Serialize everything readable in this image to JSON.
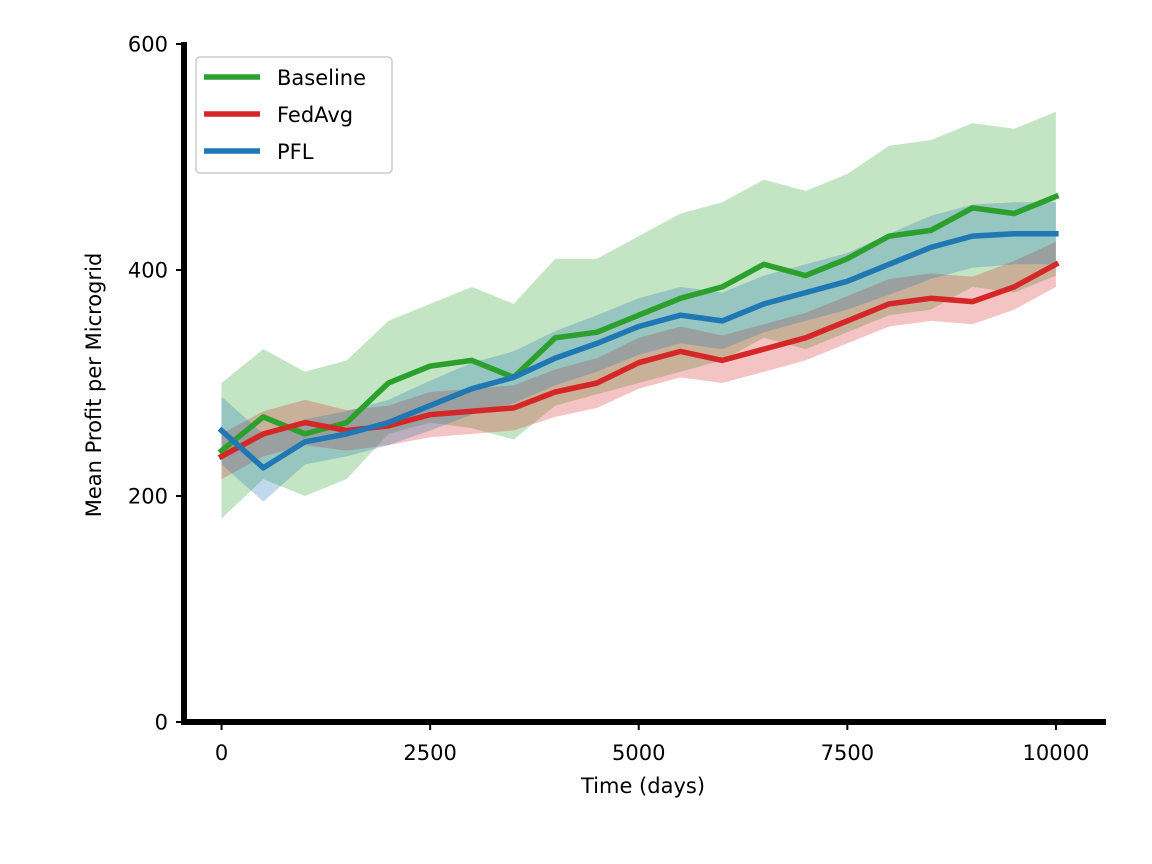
{
  "chart_data": {
    "type": "line",
    "title": "",
    "xlabel": "Time (days)",
    "ylabel": "Mean Profit per Microgrid",
    "xlim": [
      -450,
      10600
    ],
    "ylim": [
      0,
      600
    ],
    "xticks": [
      0,
      2500,
      5000,
      7500,
      10000
    ],
    "yticks": [
      0,
      200,
      400,
      600
    ],
    "xtick_labels": [
      "0",
      "2500",
      "5000",
      "7500",
      "10000"
    ],
    "ytick_labels": [
      "0",
      "200",
      "400",
      "600"
    ],
    "grid": false,
    "legend_position": "top-left",
    "x": [
      0,
      500,
      1000,
      1500,
      2000,
      2500,
      3000,
      3500,
      4000,
      4500,
      5000,
      5500,
      6000,
      6500,
      7000,
      7500,
      8000,
      8500,
      9000,
      9500,
      10000
    ],
    "series": [
      {
        "name": "Baseline",
        "color": "#2ca02c",
        "band_color": "#2ca02c",
        "values": [
          240,
          270,
          255,
          265,
          300,
          315,
          320,
          305,
          340,
          345,
          360,
          375,
          385,
          405,
          395,
          410,
          430,
          435,
          455,
          450,
          465
        ],
        "lower": [
          180,
          215,
          200,
          215,
          255,
          265,
          260,
          250,
          280,
          290,
          300,
          310,
          320,
          340,
          330,
          345,
          360,
          365,
          385,
          380,
          395
        ],
        "upper": [
          300,
          330,
          310,
          320,
          355,
          370,
          385,
          370,
          410,
          410,
          430,
          450,
          460,
          480,
          470,
          485,
          510,
          515,
          530,
          525,
          540
        ]
      },
      {
        "name": "FedAvg",
        "color": "#d62728",
        "band_color": "#d62728",
        "values": [
          235,
          255,
          265,
          258,
          262,
          272,
          275,
          278,
          292,
          300,
          318,
          328,
          320,
          330,
          340,
          355,
          370,
          375,
          372,
          385,
          405
        ],
        "lower": [
          215,
          235,
          245,
          240,
          245,
          252,
          255,
          258,
          270,
          278,
          295,
          305,
          300,
          310,
          320,
          335,
          350,
          355,
          352,
          365,
          385
        ],
        "upper": [
          255,
          275,
          285,
          276,
          280,
          292,
          295,
          298,
          312,
          322,
          340,
          350,
          342,
          352,
          362,
          377,
          392,
          397,
          394,
          408,
          425
        ]
      },
      {
        "name": "PFL",
        "color": "#1f77b4",
        "band_color": "#1f77b4",
        "values": [
          258,
          225,
          248,
          255,
          265,
          280,
          295,
          305,
          322,
          335,
          350,
          360,
          355,
          370,
          380,
          390,
          405,
          420,
          430,
          432,
          432
        ],
        "lower": [
          228,
          195,
          228,
          235,
          245,
          258,
          272,
          282,
          298,
          310,
          325,
          335,
          330,
          345,
          355,
          365,
          378,
          392,
          402,
          405,
          405
        ],
        "upper": [
          288,
          255,
          268,
          275,
          285,
          302,
          318,
          328,
          346,
          360,
          375,
          385,
          380,
          395,
          405,
          415,
          432,
          448,
          458,
          460,
          460
        ]
      }
    ]
  }
}
